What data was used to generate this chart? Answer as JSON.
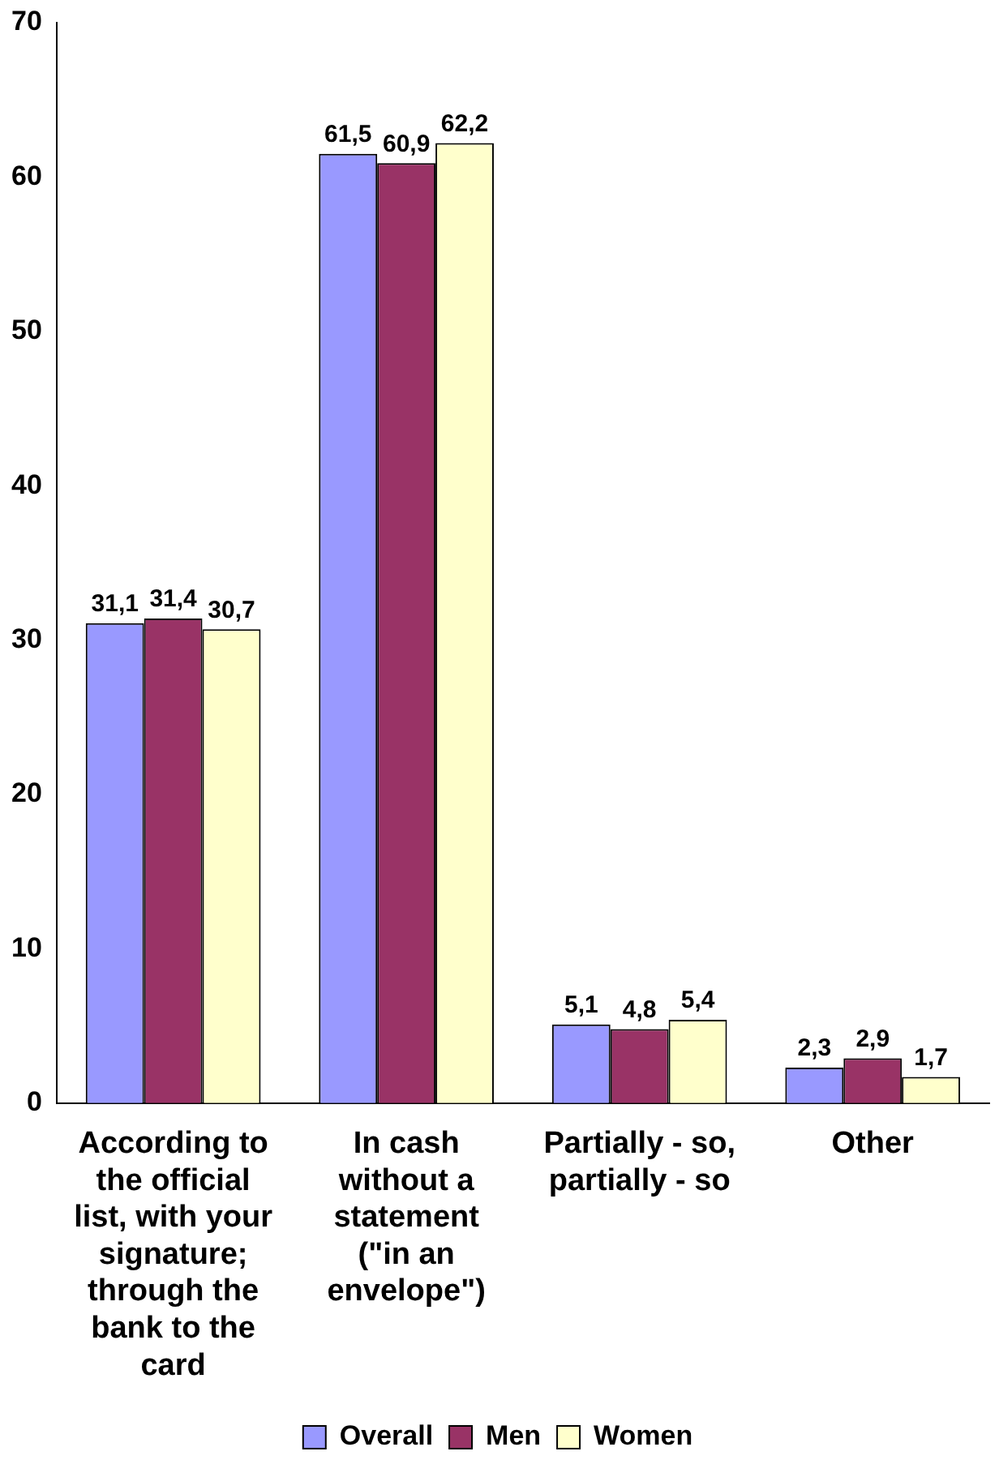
{
  "chart_data": {
    "type": "bar",
    "categories": [
      "According to the official list, with your signature; through the bank to the card",
      "In cash without a statement (\"in an envelope\")",
      "Partially - so, partially - so",
      "Other"
    ],
    "series": [
      {
        "name": "Overall",
        "color": "#9999ff",
        "values": [
          31.1,
          61.5,
          5.1,
          2.3
        ],
        "value_labels": [
          "31,1",
          "61,5",
          "5,1",
          "2,3"
        ]
      },
      {
        "name": "Men",
        "color": "#993366",
        "values": [
          31.4,
          60.9,
          4.8,
          2.9
        ],
        "value_labels": [
          "31,4",
          "60,9",
          "4,8",
          "2,9"
        ]
      },
      {
        "name": "Women",
        "color": "#ffffcc",
        "values": [
          30.7,
          62.2,
          5.4,
          1.7
        ],
        "value_labels": [
          "30,7",
          "62,2",
          "5,4",
          "1,7"
        ]
      }
    ],
    "ylim": [
      0,
      70
    ],
    "yticks": [
      0,
      10,
      20,
      30,
      40,
      50,
      60,
      70
    ],
    "grid": false,
    "legend": "bottom"
  }
}
